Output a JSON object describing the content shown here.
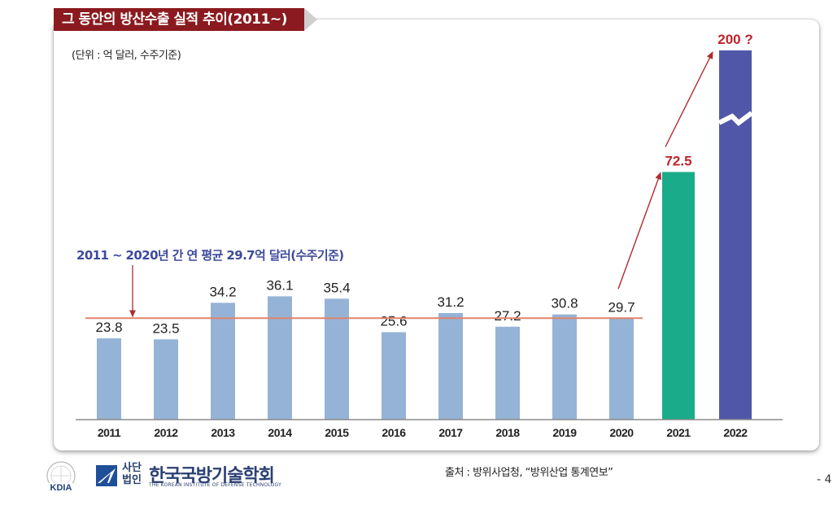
{
  "header": {
    "title": "그 동안의 방산수출 실적 추이(2011~)"
  },
  "unit_note": "(단위 : 억 달러, 수주기준)",
  "average_note": "2011 ~ 2020년 간 연 평균 29.7억 달러(수주기준)",
  "chart_data": {
    "type": "bar",
    "title": "그 동안의 방산수출 실적 추이(2011~)",
    "ylabel": "",
    "xlabel": "",
    "categories": [
      "2011",
      "2012",
      "2013",
      "2014",
      "2015",
      "2016",
      "2017",
      "2018",
      "2019",
      "2020",
      "2021",
      "2022"
    ],
    "values": [
      23.8,
      23.5,
      34.2,
      36.1,
      35.4,
      25.6,
      31.2,
      27.2,
      30.8,
      29.7,
      72.5,
      200
    ],
    "value_labels": [
      "23.8",
      "23.5",
      "34.2",
      "36.1",
      "35.4",
      "25.6",
      "31.2",
      "27.2",
      "30.8",
      "29.7",
      "72.5",
      "200 ?"
    ],
    "bar_colors": [
      "#95b3d7",
      "#95b3d7",
      "#95b3d7",
      "#95b3d7",
      "#95b3d7",
      "#95b3d7",
      "#95b3d7",
      "#95b3d7",
      "#95b3d7",
      "#95b3d7",
      "#1aab8a",
      "#5157a8"
    ],
    "average_line": {
      "value": 29.7,
      "color": "#e0836a"
    },
    "axis_break": {
      "category": "2022",
      "color": "#ffffff"
    },
    "highlight_label_color": "#c0232b",
    "arrow_color": "#b02a30",
    "ylim": [
      0,
      200
    ],
    "grid": false,
    "legend": "none"
  },
  "footer": {
    "source": "출처 : 방위사업청, “방위산업 통계연보”",
    "page_number": "- 4",
    "kdia_logo_text": "KDIA",
    "society_prefix": "사단\n법인",
    "society_name": "한국국방기술학회",
    "society_english": "THE KOREAN INSTITUTE OF DEFENSE TECHNOLOGY"
  }
}
